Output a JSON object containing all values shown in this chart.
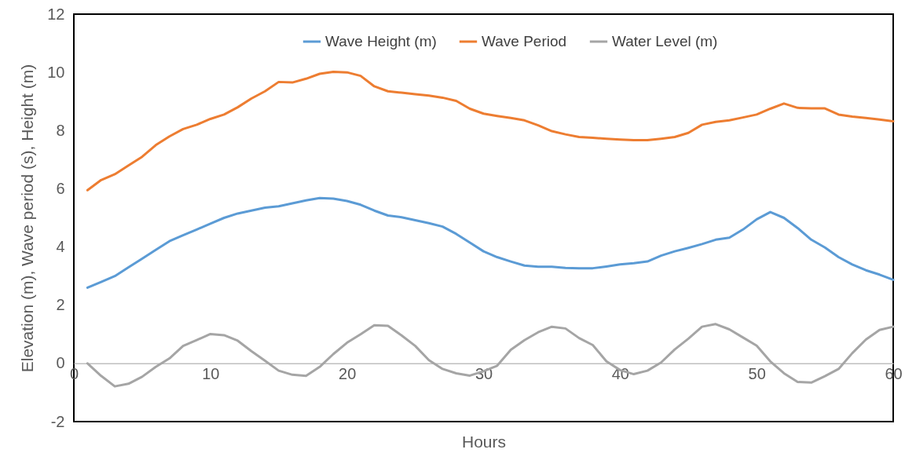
{
  "chart_data": {
    "type": "line",
    "xlabel": "Hours",
    "ylabel": "Elevation (m), Wave period (s), Height (m)",
    "x": [
      1,
      2,
      3,
      4,
      5,
      6,
      7,
      8,
      9,
      10,
      11,
      12,
      13,
      14,
      15,
      16,
      17,
      18,
      19,
      20,
      21,
      22,
      23,
      24,
      25,
      26,
      27,
      28,
      29,
      30,
      31,
      32,
      33,
      34,
      35,
      36,
      37,
      38,
      39,
      40,
      41,
      42,
      43,
      44,
      45,
      46,
      47,
      48,
      49,
      50,
      51,
      52,
      53,
      54,
      55,
      56,
      57,
      58,
      59,
      60
    ],
    "series": [
      {
        "name": "Wave Height (m)",
        "color": "#5b9bd5",
        "values": [
          2.6,
          2.8,
          3.0,
          3.3,
          3.6,
          3.9,
          4.2,
          4.4,
          4.6,
          4.8,
          5.0,
          5.15,
          5.25,
          5.35,
          5.4,
          5.5,
          5.6,
          5.68,
          5.66,
          5.58,
          5.45,
          5.25,
          5.08,
          5.02,
          4.92,
          4.82,
          4.7,
          4.45,
          4.15,
          3.85,
          3.65,
          3.5,
          3.36,
          3.32,
          3.32,
          3.28,
          3.27,
          3.27,
          3.33,
          3.4,
          3.44,
          3.5,
          3.7,
          3.85,
          3.97,
          4.1,
          4.25,
          4.32,
          4.6,
          4.95,
          5.2,
          5.0,
          4.65,
          4.25,
          3.98,
          3.65,
          3.4,
          3.2,
          3.05,
          2.87
        ]
      },
      {
        "name": "Wave Period",
        "color": "#ed7d31",
        "values": [
          5.95,
          6.3,
          6.5,
          6.8,
          7.1,
          7.5,
          7.8,
          8.05,
          8.2,
          8.4,
          8.55,
          8.8,
          9.1,
          9.35,
          9.67,
          9.65,
          9.78,
          9.95,
          10.02,
          10.0,
          9.88,
          9.52,
          9.35,
          9.3,
          9.25,
          9.2,
          9.13,
          9.02,
          8.75,
          8.58,
          8.5,
          8.43,
          8.35,
          8.18,
          7.98,
          7.87,
          7.78,
          7.75,
          7.72,
          7.69,
          7.67,
          7.67,
          7.72,
          7.78,
          7.92,
          8.2,
          8.3,
          8.35,
          8.45,
          8.55,
          8.75,
          8.93,
          8.78,
          8.76,
          8.76,
          8.55,
          8.48,
          8.43,
          8.38,
          8.32
        ]
      },
      {
        "name": "Water Level (m)",
        "color": "#a5a5a5",
        "values": [
          0.0,
          -0.43,
          -0.79,
          -0.7,
          -0.46,
          -0.12,
          0.17,
          0.6,
          0.8,
          1.01,
          0.97,
          0.78,
          0.42,
          0.09,
          -0.25,
          -0.39,
          -0.43,
          -0.12,
          0.32,
          0.71,
          1.0,
          1.31,
          1.29,
          0.96,
          0.6,
          0.11,
          -0.19,
          -0.34,
          -0.42,
          -0.27,
          -0.08,
          0.47,
          0.8,
          1.07,
          1.26,
          1.2,
          0.87,
          0.63,
          0.07,
          -0.23,
          -0.37,
          -0.25,
          0.03,
          0.48,
          0.85,
          1.26,
          1.35,
          1.17,
          0.89,
          0.61,
          0.07,
          -0.34,
          -0.64,
          -0.66,
          -0.44,
          -0.19,
          0.35,
          0.82,
          1.15,
          1.26
        ]
      }
    ],
    "xlim": [
      0,
      60
    ],
    "xticks": [
      0,
      10,
      20,
      30,
      40,
      50,
      60
    ],
    "ylim": [
      -2,
      12
    ],
    "yticks": [
      -2,
      0,
      2,
      4,
      6,
      8,
      10,
      12
    ],
    "grid": false,
    "legend": "top right",
    "marker": "none",
    "line_style": "solid"
  }
}
